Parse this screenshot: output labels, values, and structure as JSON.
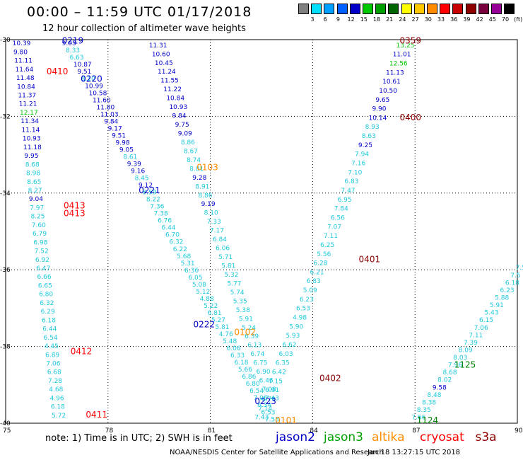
{
  "header": {
    "title": "00:00 – 11:59 UTC 01/17/2018",
    "subtitle": "12 hour collection of altimeter wave heights"
  },
  "colorbar": {
    "unit": "(ft)",
    "colors": [
      "#808080",
      "#00e0ff",
      "#00a0ff",
      "#0060ff",
      "#0000c8",
      "#00c800",
      "#00a000",
      "#006400",
      "#ffff00",
      "#ffc800",
      "#ff8c00",
      "#ff0000",
      "#c80000",
      "#8c0000",
      "#78003c",
      "#960096",
      "#000000"
    ],
    "labels": [
      "3",
      "6",
      "9",
      "12",
      "15",
      "18",
      "21",
      "24",
      "27",
      "30",
      "33",
      "36",
      "39",
      "42",
      "45",
      "70"
    ]
  },
  "map": {
    "lon_min": 75,
    "lon_max": 90,
    "lat_min": -40,
    "lat_max": -30,
    "lon_labels": [
      "75",
      "78",
      "81",
      "84",
      "87",
      "90"
    ],
    "lat_labels": [
      "-30",
      "-32",
      "-34",
      "-36",
      "-38",
      "-40"
    ]
  },
  "tracks": [
    {
      "id": "t1",
      "color": "#1ec8dc",
      "time": "0219",
      "time_color": "#0000c8",
      "values": [
        "9.05",
        "8.33",
        "6.63",
        "10.87",
        "9.51",
        "8.10",
        "10.99",
        "10.58",
        "11.60",
        "11.80",
        "11.03",
        "9.84",
        "9.17",
        "9.51",
        "9.98",
        "9.05",
        "8.61",
        "9.39",
        "9.16",
        "8.45",
        "9.12",
        "8.59",
        "8.22",
        "7.36",
        "7.38",
        "6.76",
        "6.44",
        "6.70",
        "6.32",
        "6.22",
        "5.68",
        "5.31",
        "6.36",
        "6.05",
        "5.08",
        "5.12",
        "4.88",
        "5.22",
        "6.81",
        "5.27",
        "5.81",
        "4.76",
        "5.48",
        "6.06",
        "6.33",
        "6.18",
        "5.66",
        "6.86",
        "6.80",
        "6.54",
        "7.06",
        "6.34",
        "6.53",
        "7.53"
      ],
      "t2_time": "0220"
    },
    {
      "id": "t2",
      "color": "#0000c8",
      "time": "0221",
      "values": [
        "11.31",
        "10.60",
        "10.45",
        "11.24",
        "11.55",
        "11.22",
        "10.84",
        "10.93",
        "9.84",
        "9.75",
        "9.09",
        "8.86",
        "8.67",
        "8.74",
        "8.81",
        "9.28",
        "8.91",
        "8.86",
        "9.19",
        "8.10",
        "7.33",
        "7.17",
        "6.84",
        "6.06",
        "5.71",
        "5.81",
        "5.32",
        "5.77",
        "5.74",
        "5.35",
        "5.38",
        "5.91",
        "5.24",
        "6.39",
        "6.13",
        "6.74",
        "6.75",
        "6.90",
        "6.46",
        "7.08",
        "7.43"
      ]
    },
    {
      "id": "t3",
      "color": "#0000c8",
      "time": "0413",
      "values": [
        "10.39",
        "9.80",
        "11.11",
        "11.64",
        "11.48",
        "10.84",
        "11.37",
        "11.21",
        "12.17",
        "11.34",
        "11.14",
        "10.93",
        "11.18",
        "9.95",
        "8.68",
        "8.98",
        "8.65",
        "8.27",
        "9.04",
        "7.97",
        "8.25",
        "7.60",
        "6.79",
        "6.98",
        "7.52",
        "6.92",
        "6.47",
        "6.66",
        "6.65",
        "6.80",
        "6.32",
        "6.29",
        "6.18",
        "6.44",
        "6.54",
        "4.45",
        "6.89",
        "7.06",
        "6.68",
        "7.28",
        "4.68",
        "4.96",
        "6.18",
        "5.72"
      ]
    },
    {
      "id": "t4",
      "color": "#1ec8dc",
      "time": "0359",
      "values": [
        "13.25",
        "11.01",
        "12.56",
        "11.13",
        "10.61",
        "10.50",
        "9.65",
        "9.90",
        "10.14",
        "8.93",
        "8.63",
        "9.25",
        "7.94",
        "7.16",
        "7.10",
        "6.83",
        "7.47",
        "6.95",
        "7.84",
        "6.56",
        "7.07",
        "7.11",
        "6.25",
        "5.56",
        "6.28",
        "6.21",
        "6.83",
        "5.09",
        "6.23",
        "6.53",
        "4.98",
        "5.90",
        "5.93",
        "6.62",
        "6.03",
        "6.35",
        "6.42",
        "7.15",
        "6.91",
        "6.70",
        "7.14",
        "7.43"
      ]
    },
    {
      "id": "t5",
      "color": "#1ec8dc",
      "time": "1125",
      "values": [
        "7.5",
        "7.5",
        "6.18",
        "6.23",
        "5.88",
        "5.91",
        "5.43",
        "6.15",
        "7.06",
        "7.11",
        "7.39",
        "8.09",
        "8.03",
        "7.96",
        "8.68",
        "8.02",
        "9.58",
        "8.48",
        "8.38",
        "8.35",
        "7.66"
      ]
    }
  ],
  "time_labels": [
    {
      "text": "0219",
      "color": "#0000c8",
      "lon": 76.65,
      "lat": -30.1
    },
    {
      "text": "0220",
      "color": "#0000c8",
      "lon": 77.2,
      "lat": -31.1
    },
    {
      "text": "0410",
      "color": "#ff0000",
      "lon": 76.2,
      "lat": -30.9
    },
    {
      "text": "0221",
      "color": "#0000c8",
      "lon": 78.9,
      "lat": -34.0
    },
    {
      "text": "0413",
      "color": "#ff0000",
      "lon": 76.7,
      "lat": -34.4
    },
    {
      "text": "0413",
      "color": "#ff0000",
      "lon": 76.7,
      "lat": -34.6
    },
    {
      "text": "0103",
      "color": "#ff8c00",
      "lon": 80.6,
      "lat": -33.4
    },
    {
      "text": "0222",
      "color": "#0000c8",
      "lon": 80.5,
      "lat": -37.5
    },
    {
      "text": "0102",
      "color": "#ff8c00",
      "lon": 81.7,
      "lat": -37.7
    },
    {
      "text": "0412",
      "color": "#ff0000",
      "lon": 76.9,
      "lat": -38.2
    },
    {
      "text": "0411",
      "color": "#ff0000",
      "lon": 77.35,
      "lat": -39.85
    },
    {
      "text": "0223",
      "color": "#0000c8",
      "lon": 82.3,
      "lat": -39.5
    },
    {
      "text": "0101",
      "color": "#ff8c00",
      "lon": 82.9,
      "lat": -40.0
    },
    {
      "text": "0402",
      "color": "#8c0000",
      "lon": 84.2,
      "lat": -38.9
    },
    {
      "text": "0401",
      "color": "#8c0000",
      "lon": 85.35,
      "lat": -35.8
    },
    {
      "text": "0400",
      "color": "#8c0000",
      "lon": 86.55,
      "lat": -32.1
    },
    {
      "text": "0359",
      "color": "#8c0000",
      "lon": 86.55,
      "lat": -30.1
    },
    {
      "text": "1125",
      "color": "#008000",
      "lon": 88.15,
      "lat": -38.55
    },
    {
      "text": "1124",
      "color": "#008000",
      "lon": 87.05,
      "lat": -40.0
    }
  ],
  "note": "note: 1) Time is in UTC; 2) SWH is in feet",
  "satellites": [
    {
      "name": "jason2",
      "color": "#0000c8"
    },
    {
      "name": "jason3",
      "color": "#00a000"
    },
    {
      "name": "altika",
      "color": "#ff8c00"
    },
    {
      "name": "cryosat",
      "color": "#ff0000"
    },
    {
      "name": "s3a",
      "color": "#8c0000"
    }
  ],
  "credit": "NOAA/NESDIS Center for Satellite Applications and Research",
  "timestamp": "Jan 18 13:27:15 UTC 2018"
}
